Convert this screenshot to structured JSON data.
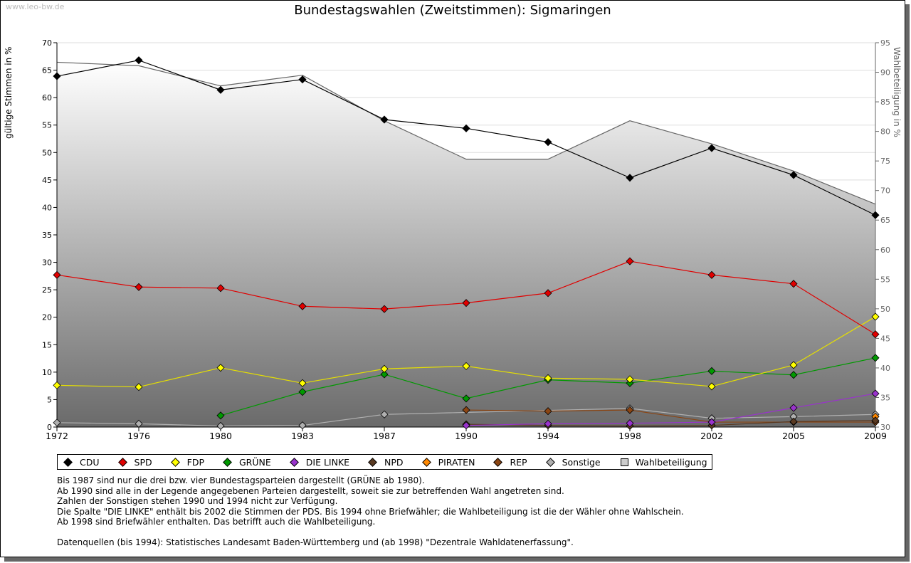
{
  "watermark": "www.leo-bw.de",
  "chart_data": {
    "type": "line",
    "title": "Bundestagswahlen (Zweitstimmen): Sigmaringen",
    "ylabel": "gültige Stimmen in %",
    "y2label": "Wahlbeteiligung in %",
    "ylim": [
      0,
      70
    ],
    "y2lim": [
      30,
      95
    ],
    "yticks": [
      0,
      5,
      10,
      15,
      20,
      25,
      30,
      35,
      40,
      45,
      50,
      55,
      60,
      65,
      70
    ],
    "y2ticks": [
      30,
      35,
      40,
      45,
      50,
      55,
      60,
      65,
      70,
      75,
      80,
      85,
      90,
      95
    ],
    "grid": true,
    "legend_placement": "bottom",
    "categories": [
      "1972",
      "1976",
      "1980",
      "1983",
      "1987",
      "1990",
      "1994",
      "1998",
      "2002",
      "2005",
      "2009"
    ],
    "series": [
      {
        "name": "CDU",
        "color": "#000000",
        "values": [
          63.9,
          66.8,
          61.4,
          63.3,
          56.0,
          54.4,
          51.9,
          45.4,
          50.8,
          45.9,
          38.6
        ]
      },
      {
        "name": "SPD",
        "color": "#e00000",
        "values": [
          27.7,
          25.5,
          25.3,
          22.0,
          21.5,
          22.6,
          24.4,
          30.2,
          27.7,
          26.1,
          16.9
        ]
      },
      {
        "name": "FDP",
        "color": "#ffff00",
        "line": "#e6e000",
        "values": [
          7.6,
          7.3,
          10.8,
          8.0,
          10.6,
          11.1,
          8.9,
          8.7,
          7.4,
          11.3,
          20.1
        ]
      },
      {
        "name": "GRÜNE",
        "color": "#009900",
        "values": [
          null,
          null,
          2.1,
          6.4,
          9.6,
          5.2,
          8.6,
          8.0,
          10.2,
          9.5,
          12.6
        ]
      },
      {
        "name": "DIE LINKE",
        "color": "#9933cc",
        "values": [
          null,
          null,
          null,
          null,
          null,
          0.3,
          0.6,
          0.7,
          0.9,
          3.5,
          6.1
        ]
      },
      {
        "name": "NPD",
        "color": "#5a3a22",
        "values": [
          null,
          null,
          null,
          null,
          null,
          0.5,
          0.3,
          0.2,
          0.3,
          1.0,
          1.2
        ]
      },
      {
        "name": "PIRATEN",
        "color": "#ff8800",
        "values": [
          null,
          null,
          null,
          null,
          null,
          null,
          null,
          null,
          null,
          null,
          1.9
        ]
      },
      {
        "name": "REP",
        "color": "#8b4513",
        "values": [
          null,
          null,
          null,
          null,
          null,
          3.1,
          2.9,
          3.1,
          0.9,
          0.9,
          0.9
        ]
      },
      {
        "name": "Sonstige",
        "color": "#b0b0b0",
        "values": [
          0.8,
          0.6,
          0.2,
          0.3,
          2.3,
          null,
          null,
          3.4,
          1.6,
          1.9,
          2.3
        ]
      },
      {
        "name": "Wahlbeteiligung",
        "axis": "right",
        "type": "area",
        "color": "#cccccc",
        "values": [
          91.7,
          91.1,
          87.7,
          89.5,
          81.8,
          75.3,
          75.3,
          81.8,
          77.9,
          73.3,
          67.7
        ]
      }
    ]
  },
  "notes": [
    "Bis 1987 sind nur die drei bzw. vier Bundestagsparteien dargestellt (GRÜNE ab 1980).",
    "Ab 1990 sind alle in der Legende angegebenen Parteien dargestellt, soweit sie zur betreffenden Wahl angetreten sind.",
    "Zahlen der Sonstigen stehen 1990 und 1994 nicht zur Verfügung.",
    "Die Spalte \"DIE LINKE\" enthält bis 2002 die Stimmen der PDS. Bis 1994 ohne Briefwähler; die Wahlbeteiligung ist die der Wähler ohne Wahlschein.",
    "Ab 1998 sind Briefwähler enthalten. Das betrifft auch die Wahlbeteiligung.",
    "",
    "Datenquellen (bis 1994): Statistisches Landesamt Baden-Württemberg und (ab 1998) \"Dezentrale Wahldatenerfassung\"."
  ]
}
